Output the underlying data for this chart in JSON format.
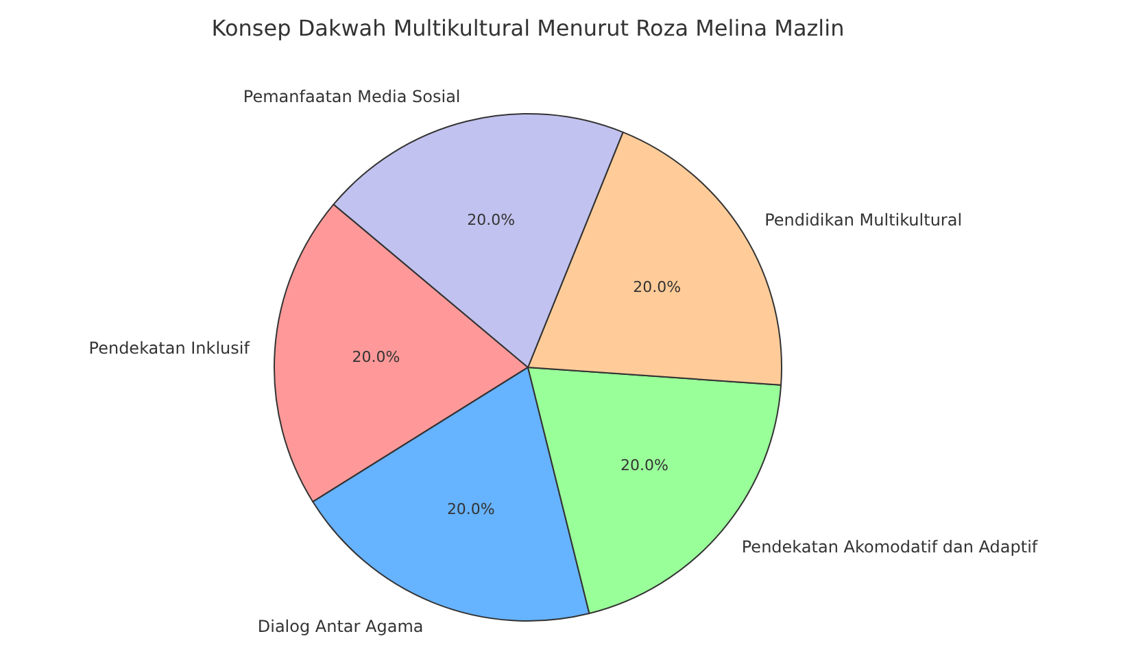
{
  "chart_data": {
    "type": "pie",
    "title": "Konsep Dakwah Multikultural Menurut Roza Melina Mazlin",
    "categories": [
      "Pendekatan Inklusif",
      "Dialog Antar Agama",
      "Pendekatan Akomodatif dan Adaptif",
      "Pendidikan Multikultural",
      "Pemanfaatan Media Sosial"
    ],
    "values": [
      20,
      20,
      20,
      20,
      20
    ],
    "colors": [
      "#ff9999",
      "#66b3ff",
      "#99ff99",
      "#ffcc99",
      "#c2c2f0"
    ],
    "value_labels": [
      "20.0%",
      "20.0%",
      "20.0%",
      "20.0%",
      "20.0%"
    ]
  }
}
